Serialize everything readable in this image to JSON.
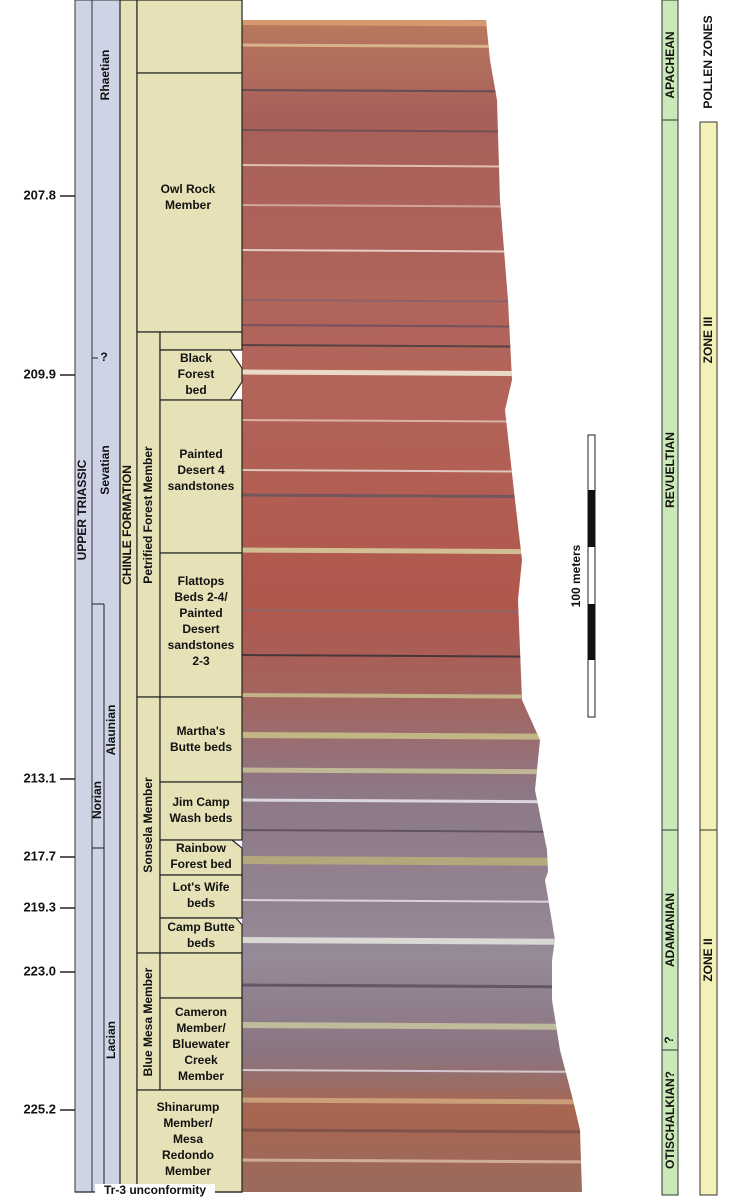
{
  "ages": [
    "207.8",
    "209.9",
    "213.1",
    "217.7",
    "219.3",
    "223.0",
    "225.2"
  ],
  "series": "UPPER TRIASSIC",
  "stages": {
    "rhaetian": "Rhaetian",
    "sevatian": "Sevatian",
    "alaunian": "Alaunian",
    "norian": "Norian",
    "lacian": "Lacian",
    "uncertain": "?"
  },
  "formation": "CHINLE FORMATION",
  "members": [
    "Owl Rock Member",
    "Petrified Forest Member",
    "Sonsela Member",
    "Blue Mesa Member"
  ],
  "owl_rock_label": [
    "Owl Rock",
    "Member"
  ],
  "beds": [
    [
      "Black",
      "Forest",
      "bed"
    ],
    [
      "Painted",
      "Desert 4",
      "sandstones"
    ],
    [
      "Flattops",
      "Beds 2-4/",
      "Painted",
      "Desert",
      "sandstones",
      "2-3"
    ],
    [
      "Martha's",
      "Butte beds"
    ],
    [
      "Jim Camp",
      "Wash beds"
    ],
    [
      "Rainbow",
      "Forest bed"
    ],
    [
      "Lot's Wife",
      "beds"
    ],
    [
      "Camp Butte",
      "beds"
    ],
    [
      "Cameron",
      "Member/",
      "Bluewater",
      "Creek",
      "Member"
    ],
    [
      "Shinarump",
      "Member/",
      "Mesa",
      "Redondo",
      "Member"
    ]
  ],
  "scale_bar": "100 meters",
  "faunal_zones": [
    "APACHEAN",
    "REVUELTIAN",
    "ADAMANIAN",
    "OTISCHALKIAN?"
  ],
  "faunal_uncertain": "?",
  "pollen_title": "POLLEN ZONES",
  "pollen_zones": [
    "ZONE III",
    "ZONE II"
  ],
  "unconformity": "Tr-3 unconformity"
}
